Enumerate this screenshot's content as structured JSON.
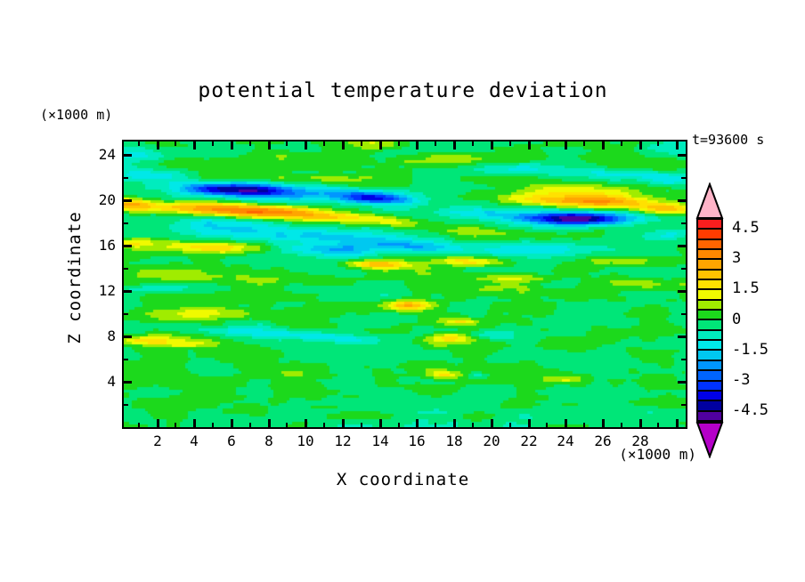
{
  "page": {
    "background": "#FFFFFF"
  },
  "chart_data": {
    "type": "heatmap",
    "title": "potential temperature deviation",
    "annotation": "t=93600 s",
    "x_axis": {
      "label": "X coordinate",
      "units": "(×1000 m)",
      "range": [
        0.2,
        30.46
      ],
      "major_ticks": [
        2,
        4,
        6,
        8,
        10,
        12,
        14,
        16,
        18,
        20,
        22,
        24,
        26,
        28
      ],
      "minor_tick_step": 1
    },
    "y_axis": {
      "label": "Z coordinate",
      "units": "(×1000 m)",
      "range": [
        0,
        25.2
      ],
      "major_ticks": [
        4,
        8,
        12,
        16,
        20,
        24
      ],
      "minor_ticks": [
        2,
        6,
        10,
        14,
        18,
        22
      ]
    },
    "contour_interval": 0.5,
    "colorbar": {
      "labels": [
        "4.5",
        "3",
        "1.5",
        "0",
        "-1.5",
        "-3",
        "-4.5"
      ],
      "label_values": [
        4.5,
        3,
        1.5,
        0,
        -1.5,
        -3,
        -4.5
      ],
      "level_min": -5,
      "level_max": 5,
      "step": 0.5,
      "colors_low_to_high": [
        "#5000A0",
        "#0000A0",
        "#0000E6",
        "#0032FF",
        "#0064FF",
        "#0096FF",
        "#00C8F0",
        "#00E8E8",
        "#00ECBE",
        "#00E678",
        "#1CD91C",
        "#A0EC00",
        "#F0FA00",
        "#FFE100",
        "#FFC300",
        "#FFA500",
        "#FF8700",
        "#FF6400",
        "#FF3C00",
        "#FA1E1E"
      ],
      "under_arrow_color": "#B400C8",
      "over_arrow_color": "#FFB4C8"
    },
    "field_model": {
      "description": "Filled-contour field of potential temperature deviation at t=93600 s; approximated as a sum of anisotropic tilted gaussian blobs [x, z, sx, sz, amplitude, slope] in axis units (×1000 m), plus two octaves of value noise for the mottled near-zero background. Color levels every 0.5 from -5 to 5.",
      "gaussians": [
        [
          6.5,
          20.9,
          3.2,
          0.55,
          -3.9,
          -0.05
        ],
        [
          13.8,
          20.15,
          2.0,
          0.5,
          -3.4,
          -0.06
        ],
        [
          10.5,
          20.55,
          5.5,
          0.9,
          -1.0,
          -0.06
        ],
        [
          6.0,
          19.15,
          4.2,
          0.55,
          3.5,
          -0.06
        ],
        [
          11.5,
          18.55,
          3.2,
          0.5,
          1.7,
          -0.07
        ],
        [
          15.0,
          18.0,
          2.0,
          0.4,
          1.0,
          -0.08
        ],
        [
          0.5,
          19.6,
          1.5,
          0.5,
          2.0,
          -0.05
        ],
        [
          6.0,
          17.5,
          5.0,
          0.95,
          -1.45,
          -0.09
        ],
        [
          13.0,
          16.6,
          3.5,
          0.7,
          -1.25,
          -0.09
        ],
        [
          16.5,
          15.9,
          2.0,
          0.5,
          -0.9,
          -0.09
        ],
        [
          5.0,
          15.85,
          2.6,
          0.45,
          1.7,
          -0.04
        ],
        [
          0.7,
          16.3,
          1.2,
          0.4,
          1.4,
          0
        ],
        [
          25.0,
          19.95,
          3.8,
          0.6,
          3.3,
          -0.05
        ],
        [
          29.3,
          19.2,
          1.5,
          0.5,
          2.2,
          -0.05
        ],
        [
          24.0,
          21.05,
          4.0,
          0.5,
          0.9,
          -0.05
        ],
        [
          24.6,
          18.35,
          2.6,
          0.5,
          -4.0,
          -0.03
        ],
        [
          23.5,
          18.55,
          5.5,
          0.85,
          -1.15,
          -0.04
        ],
        [
          19.5,
          18.9,
          2.0,
          0.4,
          -0.8,
          -0.05
        ],
        [
          1.5,
          22.25,
          2.3,
          0.6,
          -1.15,
          -0.05
        ],
        [
          1.2,
          24.0,
          1.8,
          0.8,
          -1.0,
          0
        ],
        [
          29.4,
          24.6,
          1.6,
          0.7,
          -1.1,
          0
        ],
        [
          9.5,
          21.95,
          3.0,
          0.45,
          1.0,
          -0.04
        ],
        [
          17.5,
          23.6,
          3.0,
          0.7,
          0.85,
          0
        ],
        [
          9.0,
          23.95,
          2.0,
          0.5,
          0.8,
          0
        ],
        [
          13.5,
          21.4,
          2.2,
          0.4,
          0.7,
          -0.05
        ],
        [
          21.5,
          22.75,
          3.5,
          0.6,
          -1.25,
          -0.02
        ],
        [
          27.0,
          22.3,
          2.0,
          0.5,
          -0.85,
          -0.02
        ],
        [
          29.6,
          21.8,
          1.2,
          0.6,
          -0.95,
          0
        ],
        [
          18.5,
          17.3,
          2.0,
          0.4,
          0.85,
          -0.05
        ],
        [
          29.8,
          17.0,
          1.2,
          0.5,
          -0.8,
          0
        ],
        [
          14.0,
          14.35,
          1.6,
          0.38,
          2.7,
          -0.02
        ],
        [
          11.5,
          15.55,
          2.5,
          0.5,
          -1.35,
          -0.03
        ],
        [
          14.5,
          15.9,
          3.0,
          0.5,
          -0.85,
          -0.03
        ],
        [
          18.7,
          14.6,
          1.8,
          0.35,
          1.5,
          -0.02
        ],
        [
          22.0,
          15.75,
          4.0,
          0.7,
          -0.95,
          -0.02
        ],
        [
          20.5,
          15.5,
          1.5,
          0.3,
          -0.45,
          0
        ],
        [
          27.0,
          14.65,
          2.5,
          0.4,
          0.95,
          -0.02
        ],
        [
          15.6,
          10.75,
          1.2,
          0.4,
          2.5,
          0
        ],
        [
          3.0,
          13.45,
          3.0,
          0.5,
          0.8,
          -0.02
        ],
        [
          8.0,
          12.9,
          4.0,
          0.5,
          0.6,
          -0.02
        ],
        [
          20.0,
          12.2,
          3.0,
          0.5,
          0.55,
          0
        ],
        [
          27.0,
          12.6,
          2.5,
          0.45,
          0.5,
          0
        ],
        [
          2.0,
          12.2,
          2.0,
          0.4,
          -0.8,
          0
        ],
        [
          21.0,
          13.1,
          1.7,
          0.32,
          1.35,
          0
        ],
        [
          18.4,
          9.3,
          0.9,
          0.28,
          1.6,
          0
        ],
        [
          7.0,
          8.4,
          4.5,
          0.45,
          -1.25,
          -0.08
        ],
        [
          11.5,
          7.9,
          2.2,
          0.35,
          -0.9,
          -0.08
        ],
        [
          1.5,
          7.6,
          1.8,
          0.45,
          1.8,
          0
        ],
        [
          4.0,
          7.35,
          1.6,
          0.35,
          0.85,
          0
        ],
        [
          17.7,
          7.9,
          1.2,
          0.45,
          1.7,
          0
        ],
        [
          20.2,
          8.1,
          1.5,
          0.4,
          -0.85,
          0
        ],
        [
          17.5,
          4.6,
          0.9,
          0.35,
          1.6,
          0
        ],
        [
          19.25,
          4.5,
          0.55,
          0.28,
          -0.95,
          0
        ],
        [
          24.0,
          4.2,
          0.8,
          0.3,
          0.8,
          0
        ],
        [
          9.2,
          4.8,
          0.7,
          0.28,
          0.8,
          0
        ],
        [
          4.5,
          10.0,
          3.0,
          0.5,
          1.15,
          -0.02
        ],
        [
          15.0,
          0.8,
          14.0,
          1.4,
          -0.3,
          0
        ],
        [
          13.5,
          24.9,
          1.2,
          0.5,
          0.7,
          0
        ]
      ],
      "noise_octaves": [
        {
          "sx": 2.4,
          "sz": 1.05,
          "amp": 0.4,
          "seed": 7
        },
        {
          "sx": 0.95,
          "sz": 0.45,
          "amp": 0.2,
          "seed": 13
        }
      ]
    }
  }
}
